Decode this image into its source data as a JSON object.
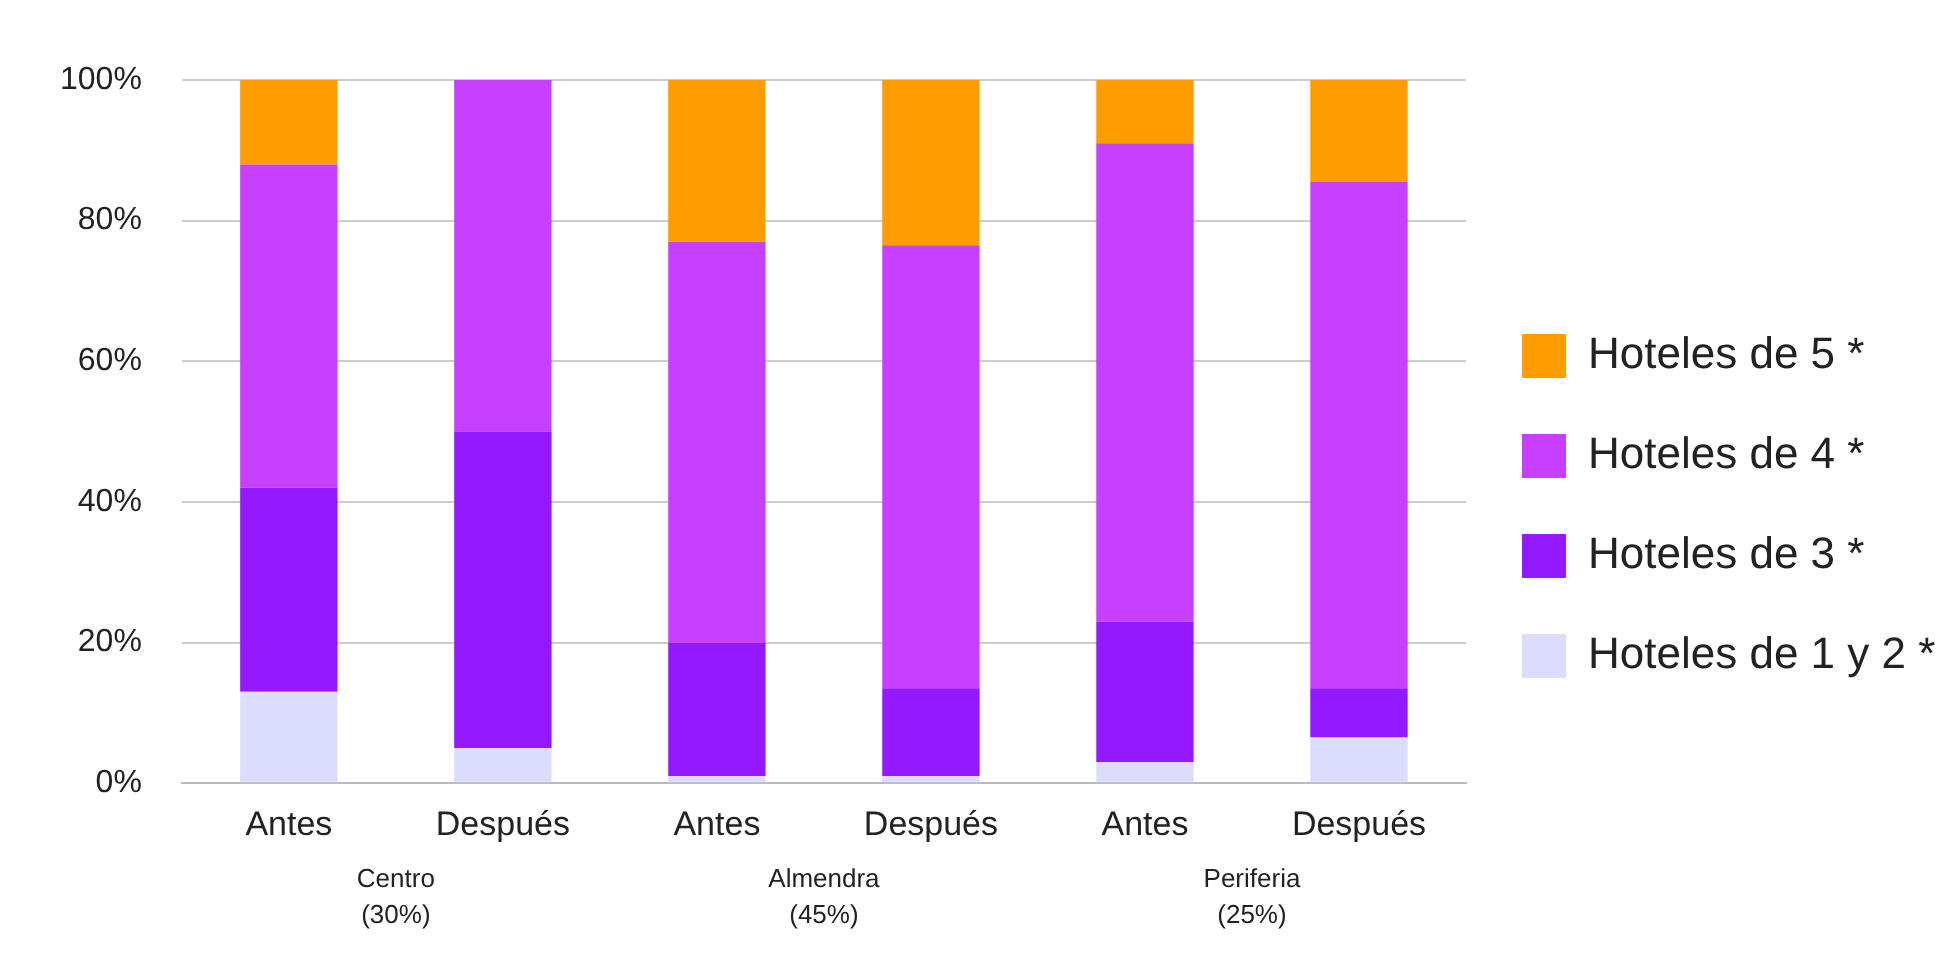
{
  "chart_data": {
    "type": "bar",
    "stacked": true,
    "categories": [
      "Antes",
      "Después",
      "Antes",
      "Después",
      "Antes",
      "Después"
    ],
    "series": [
      {
        "name": "Hoteles de 1 y 2 *",
        "color": "#dcdcff",
        "values": [
          13,
          5,
          1,
          1,
          3,
          6.5
        ]
      },
      {
        "name": "Hoteles de 3 *",
        "color": "#9419ff",
        "values": [
          29,
          45,
          19,
          12.5,
          20,
          7
        ]
      },
      {
        "name": "Hoteles de 4 *",
        "color": "#c840ff",
        "values": [
          46,
          50,
          57,
          63,
          68,
          72
        ]
      },
      {
        "name": "Hoteles de 5 *",
        "color": "#ff9c00",
        "values": [
          12,
          0,
          23,
          23.5,
          9,
          14.5
        ]
      }
    ],
    "ylim": [
      0,
      100
    ],
    "yticks": [
      {
        "value": 0,
        "label": "0%"
      },
      {
        "value": 20,
        "label": "20%"
      },
      {
        "value": 40,
        "label": "40%"
      },
      {
        "value": 60,
        "label": "60%"
      },
      {
        "value": 80,
        "label": "80%"
      },
      {
        "value": 100,
        "label": "100%"
      }
    ],
    "grid": "y",
    "legend": "right",
    "annotations": [
      "Centro\n(30%)",
      "Almendra\n(45%)",
      "Periferia\n(25%)"
    ]
  }
}
